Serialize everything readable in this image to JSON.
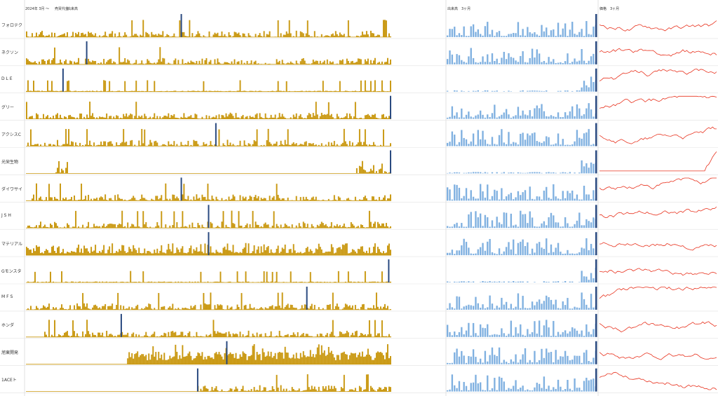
{
  "header": {
    "period_label": "2024年 3月 〜",
    "price_label": "売買代金",
    "period_label2": "出来高",
    "volume_label": "出来高　3ヶ月",
    "price3m_label": "価格　3ヶ月"
  },
  "colors": {
    "volume_long": "#c8960c",
    "volume_short": "#7fb0e0",
    "highlight": "#2a4a80",
    "price_line": "#e8321e",
    "grid": "#e2e2e2"
  },
  "chart_data": {
    "type": "bar",
    "description_panels": [
      "long-term volume",
      "3-month volume",
      "3-month price"
    ],
    "rows": [
      {
        "label": "フォロテク",
        "highlight_pos": 0.425,
        "seed": 11,
        "profile": "mid"
      },
      {
        "label": "ネクソン",
        "highlight_pos": 0.165,
        "seed": 23,
        "profile": "early"
      },
      {
        "label": "D L E",
        "highlight_pos": 0.1,
        "seed": 37,
        "profile": "sparse"
      },
      {
        "label": "グリー",
        "highlight_pos": 1.0,
        "seed": 41,
        "profile": "mid"
      },
      {
        "label": "アクシスC",
        "highlight_pos": 0.52,
        "seed": 53,
        "profile": "spiky"
      },
      {
        "label": "光栄生物",
        "highlight_pos": 1.0,
        "seed": 61,
        "profile": "empty"
      },
      {
        "label": "ダイワサイ",
        "highlight_pos": 0.425,
        "seed": 71,
        "profile": "mid"
      },
      {
        "label": "J S H",
        "highlight_pos": 0.5,
        "seed": 83,
        "profile": "mid"
      },
      {
        "label": "マテリアル",
        "highlight_pos": 0.5,
        "seed": 97,
        "profile": "dense"
      },
      {
        "label": "Gモンスタ",
        "highlight_pos": 0.995,
        "seed": 101,
        "profile": "sparse"
      },
      {
        "label": "M F S",
        "highlight_pos": 0.77,
        "seed": 113,
        "profile": "mid"
      },
      {
        "label": "ホンダ",
        "highlight_pos": 0.26,
        "seed": 127,
        "profile": "late"
      },
      {
        "label": "旭東開発",
        "highlight_pos": 0.55,
        "seed": 131,
        "profile": "block"
      },
      {
        "label": "1ACEト",
        "highlight_pos": 0.47,
        "seed": 139,
        "profile": "lateStart"
      }
    ]
  }
}
